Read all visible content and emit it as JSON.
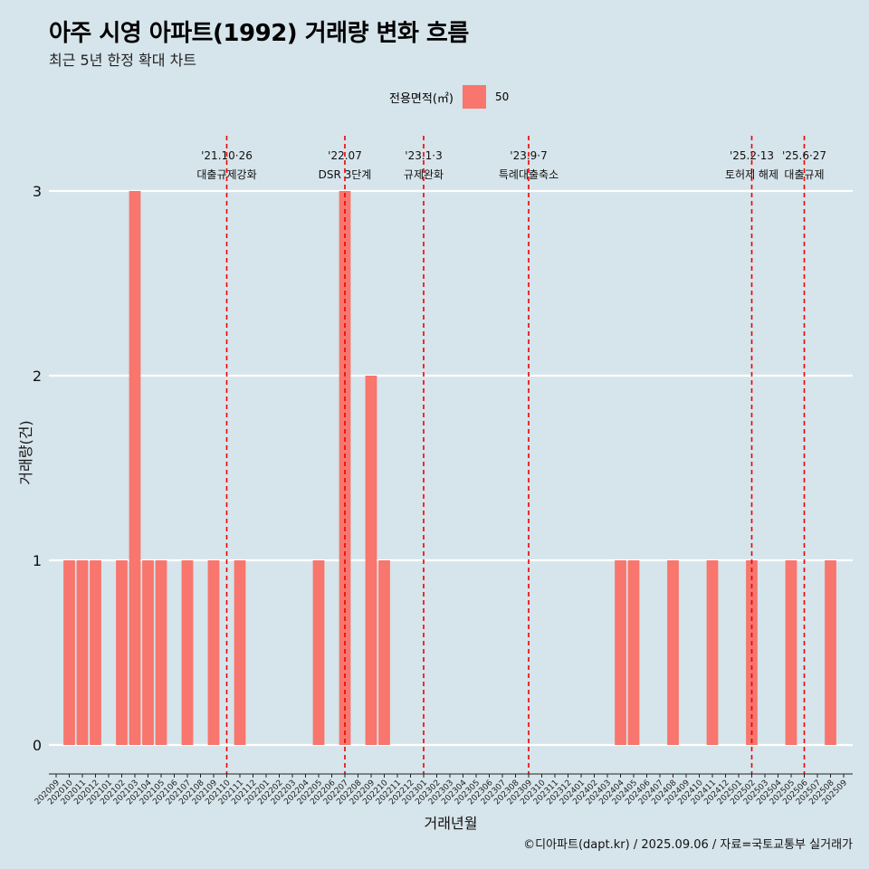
{
  "title": "아주 시영 아파트(1992) 거래량 변화 흐름",
  "subtitle": "최근 5년 한정 확대 차트",
  "legend": {
    "title": "전용면적(㎡)",
    "label": "50"
  },
  "caption": "©디아파트(dapt.kr) / 2025.09.06 / 자료=국토교통부 실거래가",
  "colors": {
    "background": "#d6e4eb",
    "bar": "#f8766d",
    "event_line": "#ee0000",
    "grid": "#ffffff"
  },
  "chart_data": {
    "type": "bar",
    "xlabel": "거래년월",
    "ylabel": "거래량(건)",
    "ylim": [
      0,
      3
    ],
    "yticks": [
      0,
      1,
      2,
      3
    ],
    "categories": [
      "202009",
      "202010",
      "202011",
      "202012",
      "202101",
      "202102",
      "202103",
      "202104",
      "202105",
      "202106",
      "202107",
      "202108",
      "202109",
      "202110",
      "202111",
      "202112",
      "202201",
      "202202",
      "202203",
      "202204",
      "202205",
      "202206",
      "202207",
      "202208",
      "202209",
      "202210",
      "202211",
      "202212",
      "202301",
      "202302",
      "202303",
      "202304",
      "202305",
      "202306",
      "202307",
      "202308",
      "202309",
      "202310",
      "202311",
      "202312",
      "202401",
      "202402",
      "202403",
      "202404",
      "202405",
      "202406",
      "202407",
      "202408",
      "202409",
      "202410",
      "202411",
      "202412",
      "202501",
      "202502",
      "202503",
      "202504",
      "202505",
      "202506",
      "202507",
      "202508",
      "202509"
    ],
    "series": [
      {
        "name": "50",
        "values": [
          0,
          1,
          1,
          1,
          0,
          1,
          3,
          1,
          1,
          0,
          1,
          0,
          1,
          0,
          1,
          0,
          0,
          0,
          0,
          0,
          1,
          0,
          3,
          0,
          2,
          1,
          0,
          0,
          0,
          0,
          0,
          0,
          0,
          0,
          0,
          0,
          0,
          0,
          0,
          0,
          0,
          0,
          0,
          1,
          1,
          0,
          0,
          1,
          0,
          0,
          1,
          0,
          0,
          1,
          0,
          0,
          1,
          0,
          0,
          1,
          0
        ]
      }
    ],
    "events": [
      {
        "category": "202110",
        "date": "'21.10·26",
        "label": "대출규제강화"
      },
      {
        "category": "202207",
        "date": "'22.07",
        "label": "DSR 3단계"
      },
      {
        "category": "202301",
        "date": "'23.1·3",
        "label": "규제완화"
      },
      {
        "category": "202309",
        "date": "'23.9·7",
        "label": "특례대출축소"
      },
      {
        "category": "202502",
        "date": "'25.2·13",
        "label": "토허제 해제"
      },
      {
        "category": "202506",
        "date": "'25.6·27",
        "label": "대출규제"
      }
    ]
  }
}
